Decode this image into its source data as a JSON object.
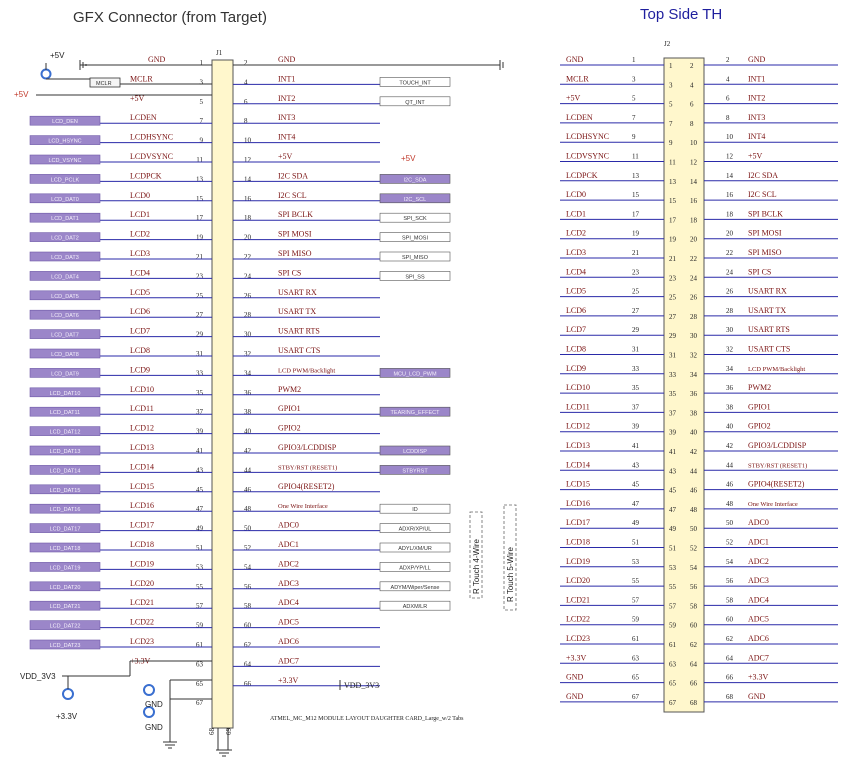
{
  "titles": {
    "left": "GFX Connector (from Target)",
    "right": "Top Side TH"
  },
  "colors": {
    "purple": "#9b86c9",
    "conn_fill": "#fff7cc",
    "wire": "#2a2aa8",
    "red": "#c0392b"
  },
  "j1": {
    "ref": "J1",
    "left_pins": [
      {
        "n": "1",
        "sig": "GND"
      },
      {
        "n": "3",
        "sig": "MCLR"
      },
      {
        "n": "5",
        "sig": "+5V"
      },
      {
        "n": "7",
        "sig": "LCDEN"
      },
      {
        "n": "9",
        "sig": "LCDHSYNC"
      },
      {
        "n": "11",
        "sig": "LCDVSYNC"
      },
      {
        "n": "13",
        "sig": "LCDPCK"
      },
      {
        "n": "15",
        "sig": "LCD0"
      },
      {
        "n": "17",
        "sig": "LCD1"
      },
      {
        "n": "19",
        "sig": "LCD2"
      },
      {
        "n": "21",
        "sig": "LCD3"
      },
      {
        "n": "23",
        "sig": "LCD4"
      },
      {
        "n": "25",
        "sig": "LCD5"
      },
      {
        "n": "27",
        "sig": "LCD6"
      },
      {
        "n": "29",
        "sig": "LCD7"
      },
      {
        "n": "31",
        "sig": "LCD8"
      },
      {
        "n": "33",
        "sig": "LCD9"
      },
      {
        "n": "35",
        "sig": "LCD10"
      },
      {
        "n": "37",
        "sig": "LCD11"
      },
      {
        "n": "39",
        "sig": "LCD12"
      },
      {
        "n": "41",
        "sig": "LCD13"
      },
      {
        "n": "43",
        "sig": "LCD14"
      },
      {
        "n": "45",
        "sig": "LCD15"
      },
      {
        "n": "47",
        "sig": "LCD16"
      },
      {
        "n": "49",
        "sig": "LCD17"
      },
      {
        "n": "51",
        "sig": "LCD18"
      },
      {
        "n": "53",
        "sig": "LCD19"
      },
      {
        "n": "55",
        "sig": "LCD20"
      },
      {
        "n": "57",
        "sig": "LCD21"
      },
      {
        "n": "59",
        "sig": "LCD22"
      },
      {
        "n": "61",
        "sig": "LCD23"
      },
      {
        "n": "63",
        "sig": "+3.3V"
      },
      {
        "n": "65",
        "sig": ""
      },
      {
        "n": "67",
        "sig": ""
      }
    ],
    "right_pins": [
      {
        "n": "2",
        "sig": "GND"
      },
      {
        "n": "4",
        "sig": "INT1"
      },
      {
        "n": "6",
        "sig": "INT2"
      },
      {
        "n": "8",
        "sig": "INT3"
      },
      {
        "n": "10",
        "sig": "INT4"
      },
      {
        "n": "12",
        "sig": "+5V"
      },
      {
        "n": "14",
        "sig": "I2C SDA"
      },
      {
        "n": "16",
        "sig": "I2C SCL"
      },
      {
        "n": "18",
        "sig": "SPI BCLK"
      },
      {
        "n": "20",
        "sig": "SPI MOSI"
      },
      {
        "n": "22",
        "sig": "SPI MISO"
      },
      {
        "n": "24",
        "sig": "SPI CS"
      },
      {
        "n": "26",
        "sig": "USART RX"
      },
      {
        "n": "28",
        "sig": "USART TX"
      },
      {
        "n": "30",
        "sig": "USART RTS"
      },
      {
        "n": "32",
        "sig": "USART CTS"
      },
      {
        "n": "34",
        "sig": "LCD PWM/Backlight"
      },
      {
        "n": "36",
        "sig": "PWM2"
      },
      {
        "n": "38",
        "sig": "GPIO1"
      },
      {
        "n": "40",
        "sig": "GPIO2"
      },
      {
        "n": "42",
        "sig": "GPIO3/LCDDISP"
      },
      {
        "n": "44",
        "sig": "STBY/RST (RESET1)"
      },
      {
        "n": "46",
        "sig": "GPIO4(RESET2)"
      },
      {
        "n": "48",
        "sig": "One Wire Interface"
      },
      {
        "n": "50",
        "sig": "ADC0"
      },
      {
        "n": "52",
        "sig": "ADC1"
      },
      {
        "n": "54",
        "sig": "ADC2"
      },
      {
        "n": "56",
        "sig": "ADC3"
      },
      {
        "n": "58",
        "sig": "ADC4"
      },
      {
        "n": "60",
        "sig": "ADC5"
      },
      {
        "n": "62",
        "sig": "ADC6"
      },
      {
        "n": "64",
        "sig": "ADC7"
      },
      {
        "n": "66",
        "sig": "+3.3V"
      }
    ],
    "bottom_pins": [
      "68",
      "69"
    ]
  },
  "left_nets": [
    "LCD_DEN",
    "LCD_HSYNC",
    "LCD_VSYNC",
    "LCD_PCLK",
    "LCD_DAT0",
    "LCD_DAT1",
    "LCD_DAT2",
    "LCD_DAT3",
    "LCD_DAT4",
    "LCD_DAT5",
    "LCD_DAT6",
    "LCD_DAT7",
    "LCD_DAT8",
    "LCD_DAT9",
    "LCD_DAT10",
    "LCD_DAT11",
    "LCD_DAT12",
    "LCD_DAT13",
    "LCD_DAT14",
    "LCD_DAT15",
    "LCD_DAT16",
    "LCD_DAT17",
    "LCD_DAT18",
    "LCD_DAT19",
    "LCD_DAT20",
    "LCD_DAT21",
    "LCD_DAT22",
    "LCD_DAT23"
  ],
  "right_nets": [
    {
      "row": 1,
      "label": "TOUCH_INT",
      "style": "white"
    },
    {
      "row": 2,
      "label": "QT_INT",
      "style": "white"
    },
    {
      "row": 6,
      "label": "I2C_SDA",
      "style": "purple"
    },
    {
      "row": 7,
      "label": "I2C_SCL",
      "style": "purple"
    },
    {
      "row": 8,
      "label": "SPI_SCK",
      "style": "white"
    },
    {
      "row": 9,
      "label": "SPI_MOSI",
      "style": "white"
    },
    {
      "row": 10,
      "label": "SPI_MISO",
      "style": "white"
    },
    {
      "row": 11,
      "label": "SPI_SS",
      "style": "white"
    },
    {
      "row": 16,
      "label": "MCU_LCD_PWM",
      "style": "purple"
    },
    {
      "row": 18,
      "label": "TEARING_EFFECT",
      "style": "purple"
    },
    {
      "row": 20,
      "label": "LCDDISP",
      "style": "purple"
    },
    {
      "row": 21,
      "label": "STBYRST",
      "style": "purple"
    },
    {
      "row": 23,
      "label": "ID",
      "style": "white"
    },
    {
      "row": 24,
      "label": "ADXR/XP/UL",
      "style": "white"
    },
    {
      "row": 25,
      "label": "ADYL/XM/UR",
      "style": "white"
    },
    {
      "row": 26,
      "label": "ADXP/YP/LL",
      "style": "white"
    },
    {
      "row": 27,
      "label": "ADYM/Wiper/Sense",
      "style": "white"
    },
    {
      "row": 28,
      "label": "ADXM/LR",
      "style": "white"
    }
  ],
  "misc": {
    "p5v": "+5V",
    "mclr_box": "MCLR",
    "p5v_in": "+5V",
    "p5v_out": "+5V",
    "vdd_in": "VDD_3V3",
    "vdd_out": "VDD_3V3",
    "p33": "+3.3V",
    "gnd1": "GND",
    "gnd2": "GND",
    "touch4": "R Touch 4-Wire",
    "touch5": "R Touch 5-Wire",
    "footnote": "ATMEL_MC_M12 MODULE LAYOUT DAUGHTER CARD_Large_w/2 Tabs"
  },
  "j2": {
    "ref": "J2",
    "left_pins": [
      {
        "n": "1",
        "sig": "GND"
      },
      {
        "n": "3",
        "sig": "MCLR"
      },
      {
        "n": "5",
        "sig": "+5V"
      },
      {
        "n": "7",
        "sig": "LCDEN"
      },
      {
        "n": "9",
        "sig": "LCDHSYNC"
      },
      {
        "n": "11",
        "sig": "LCDVSYNC"
      },
      {
        "n": "13",
        "sig": "LCDPCK"
      },
      {
        "n": "15",
        "sig": "LCD0"
      },
      {
        "n": "17",
        "sig": "LCD1"
      },
      {
        "n": "19",
        "sig": "LCD2"
      },
      {
        "n": "21",
        "sig": "LCD3"
      },
      {
        "n": "23",
        "sig": "LCD4"
      },
      {
        "n": "25",
        "sig": "LCD5"
      },
      {
        "n": "27",
        "sig": "LCD6"
      },
      {
        "n": "29",
        "sig": "LCD7"
      },
      {
        "n": "31",
        "sig": "LCD8"
      },
      {
        "n": "33",
        "sig": "LCD9"
      },
      {
        "n": "35",
        "sig": "LCD10"
      },
      {
        "n": "37",
        "sig": "LCD11"
      },
      {
        "n": "39",
        "sig": "LCD12"
      },
      {
        "n": "41",
        "sig": "LCD13"
      },
      {
        "n": "43",
        "sig": "LCD14"
      },
      {
        "n": "45",
        "sig": "LCD15"
      },
      {
        "n": "47",
        "sig": "LCD16"
      },
      {
        "n": "49",
        "sig": "LCD17"
      },
      {
        "n": "51",
        "sig": "LCD18"
      },
      {
        "n": "53",
        "sig": "LCD19"
      },
      {
        "n": "55",
        "sig": "LCD20"
      },
      {
        "n": "57",
        "sig": "LCD21"
      },
      {
        "n": "59",
        "sig": "LCD22"
      },
      {
        "n": "61",
        "sig": "LCD23"
      },
      {
        "n": "63",
        "sig": "+3.3V"
      },
      {
        "n": "65",
        "sig": "GND"
      },
      {
        "n": "67",
        "sig": "GND"
      }
    ],
    "right_pins": [
      {
        "n": "2",
        "sig": "GND"
      },
      {
        "n": "4",
        "sig": "INT1"
      },
      {
        "n": "6",
        "sig": "INT2"
      },
      {
        "n": "8",
        "sig": "INT3"
      },
      {
        "n": "10",
        "sig": "INT4"
      },
      {
        "n": "12",
        "sig": "+5V"
      },
      {
        "n": "14",
        "sig": "I2C SDA"
      },
      {
        "n": "16",
        "sig": "I2C SCL"
      },
      {
        "n": "18",
        "sig": "SPI BCLK"
      },
      {
        "n": "20",
        "sig": "SPI MOSI"
      },
      {
        "n": "22",
        "sig": "SPI MISO"
      },
      {
        "n": "24",
        "sig": "SPI CS"
      },
      {
        "n": "26",
        "sig": "USART RX"
      },
      {
        "n": "28",
        "sig": "USART TX"
      },
      {
        "n": "30",
        "sig": "USART RTS"
      },
      {
        "n": "32",
        "sig": "USART CTS"
      },
      {
        "n": "34",
        "sig": "LCD PWM/Backlight"
      },
      {
        "n": "36",
        "sig": "PWM2"
      },
      {
        "n": "38",
        "sig": "GPIO1"
      },
      {
        "n": "40",
        "sig": "GPIO2"
      },
      {
        "n": "42",
        "sig": "GPIO3/LCDDISP"
      },
      {
        "n": "44",
        "sig": "STBY/RST (RESET1)"
      },
      {
        "n": "46",
        "sig": "GPIO4(RESET2)"
      },
      {
        "n": "48",
        "sig": "One Wire Interface"
      },
      {
        "n": "50",
        "sig": "ADC0"
      },
      {
        "n": "52",
        "sig": "ADC1"
      },
      {
        "n": "54",
        "sig": "ADC2"
      },
      {
        "n": "56",
        "sig": "ADC3"
      },
      {
        "n": "58",
        "sig": "ADC4"
      },
      {
        "n": "60",
        "sig": "ADC5"
      },
      {
        "n": "62",
        "sig": "ADC6"
      },
      {
        "n": "64",
        "sig": "ADC7"
      },
      {
        "n": "66",
        "sig": "+3.3V"
      },
      {
        "n": "68",
        "sig": "GND"
      }
    ]
  }
}
